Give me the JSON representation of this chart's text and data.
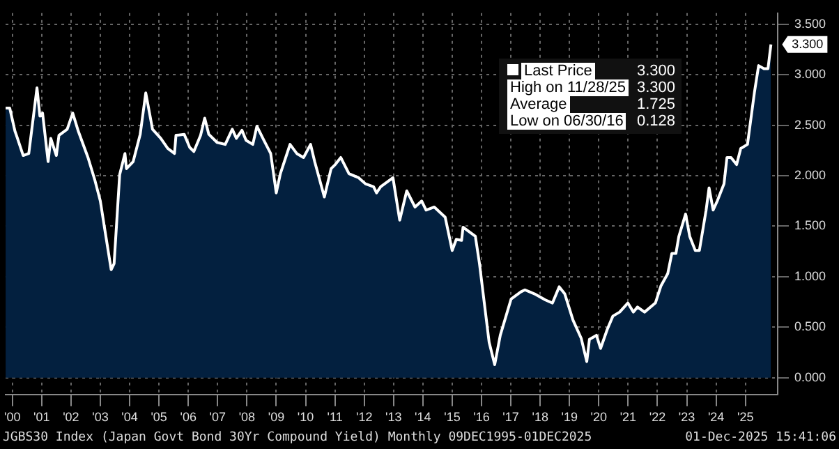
{
  "chart_data": {
    "type": "area",
    "x": [
      1999.77,
      1999.91,
      2000.09,
      2000.14,
      2000.37,
      2000.56,
      2000.84,
      2000.94,
      2001.03,
      2001.22,
      2001.31,
      2001.5,
      2001.59,
      2001.87,
      2002.06,
      2002.25,
      2002.58,
      2002.81,
      2003.0,
      2003.14,
      2003.37,
      2003.47,
      2003.66,
      2003.84,
      2003.89,
      2004.12,
      2004.36,
      2004.55,
      2004.78,
      2005.06,
      2005.3,
      2005.53,
      2005.58,
      2005.86,
      2006.05,
      2006.19,
      2006.42,
      2006.56,
      2006.7,
      2006.98,
      2007.26,
      2007.5,
      2007.64,
      2007.83,
      2007.97,
      2008.2,
      2008.34,
      2008.58,
      2008.81,
      2009.0,
      2009.14,
      2009.47,
      2009.7,
      2009.93,
      2010.17,
      2010.31,
      2010.64,
      2010.87,
      2011.01,
      2011.2,
      2011.48,
      2011.81,
      2012.04,
      2012.32,
      2012.42,
      2012.56,
      2012.98,
      2013.21,
      2013.45,
      2013.73,
      2013.96,
      2014.11,
      2014.39,
      2014.76,
      2015.0,
      2015.14,
      2015.32,
      2015.37,
      2015.79,
      2015.93,
      2016.26,
      2016.45,
      2016.64,
      2017.01,
      2017.34,
      2017.48,
      2017.81,
      2018.18,
      2018.42,
      2018.65,
      2018.84,
      2019.12,
      2019.4,
      2019.59,
      2019.68,
      2019.92,
      2020.06,
      2020.29,
      2020.48,
      2020.71,
      2020.99,
      2021.18,
      2021.32,
      2021.56,
      2021.93,
      2022.12,
      2022.35,
      2022.49,
      2022.63,
      2022.73,
      2022.96,
      2023.1,
      2023.29,
      2023.43,
      2023.66,
      2023.76,
      2023.9,
      2024.04,
      2024.27,
      2024.37,
      2024.51,
      2024.7,
      2024.84,
      2025.07,
      2025.31,
      2025.45,
      2025.63,
      2025.77,
      2025.87
    ],
    "series": [
      {
        "name": "Last Price",
        "color": "#03203f",
        "values": [
          2.67,
          2.67,
          2.44,
          2.4,
          2.2,
          2.22,
          2.87,
          2.59,
          2.62,
          2.14,
          2.37,
          2.2,
          2.4,
          2.46,
          2.62,
          2.44,
          2.18,
          1.96,
          1.75,
          1.49,
          1.07,
          1.13,
          2.01,
          2.22,
          2.07,
          2.14,
          2.41,
          2.82,
          2.46,
          2.37,
          2.27,
          2.22,
          2.4,
          2.41,
          2.28,
          2.24,
          2.4,
          2.57,
          2.41,
          2.33,
          2.31,
          2.46,
          2.37,
          2.45,
          2.35,
          2.31,
          2.49,
          2.35,
          2.22,
          1.83,
          2.02,
          2.31,
          2.22,
          2.18,
          2.31,
          2.14,
          1.79,
          2.07,
          2.11,
          2.18,
          2.02,
          1.98,
          1.92,
          1.89,
          1.83,
          1.89,
          1.98,
          1.56,
          1.85,
          1.69,
          1.75,
          1.66,
          1.69,
          1.59,
          1.26,
          1.37,
          1.36,
          1.49,
          1.4,
          1.13,
          0.35,
          0.13,
          0.42,
          0.78,
          0.85,
          0.87,
          0.83,
          0.77,
          0.74,
          0.9,
          0.83,
          0.57,
          0.39,
          0.16,
          0.38,
          0.42,
          0.29,
          0.48,
          0.61,
          0.65,
          0.74,
          0.65,
          0.7,
          0.65,
          0.74,
          0.91,
          1.03,
          1.23,
          1.23,
          1.4,
          1.62,
          1.4,
          1.26,
          1.26,
          1.66,
          1.88,
          1.66,
          1.75,
          1.92,
          2.18,
          2.18,
          2.11,
          2.27,
          2.31,
          2.83,
          3.09,
          3.06,
          3.06,
          3.3
        ]
      }
    ],
    "xlim": [
      1999.77,
      2026.1
    ],
    "xticks": [
      {
        "value": 2000,
        "label": "'00"
      },
      {
        "value": 2001,
        "label": "'01"
      },
      {
        "value": 2002,
        "label": "'02"
      },
      {
        "value": 2003,
        "label": "'03"
      },
      {
        "value": 2004,
        "label": "'04"
      },
      {
        "value": 2005,
        "label": "'05"
      },
      {
        "value": 2006,
        "label": "'06"
      },
      {
        "value": 2007,
        "label": "'07"
      },
      {
        "value": 2008,
        "label": "'08"
      },
      {
        "value": 2009,
        "label": "'09"
      },
      {
        "value": 2010,
        "label": "'10"
      },
      {
        "value": 2011,
        "label": "'11"
      },
      {
        "value": 2012,
        "label": "'12"
      },
      {
        "value": 2013,
        "label": "'13"
      },
      {
        "value": 2014,
        "label": "'14"
      },
      {
        "value": 2015,
        "label": "'15"
      },
      {
        "value": 2016,
        "label": "'16"
      },
      {
        "value": 2017,
        "label": "'17"
      },
      {
        "value": 2018,
        "label": "'18"
      },
      {
        "value": 2019,
        "label": "'19"
      },
      {
        "value": 2020,
        "label": "'20"
      },
      {
        "value": 2021,
        "label": "'21"
      },
      {
        "value": 2022,
        "label": "'22"
      },
      {
        "value": 2023,
        "label": "'23"
      },
      {
        "value": 2024,
        "label": "'24"
      },
      {
        "value": 2025,
        "label": "'25"
      }
    ],
    "ylim": [
      -0.17,
      3.61
    ],
    "yticks": [
      {
        "value": 0,
        "label": "0.000"
      },
      {
        "value": 0.5,
        "label": "0.500"
      },
      {
        "value": 1,
        "label": "1.000"
      },
      {
        "value": 1.5,
        "label": "1.500"
      },
      {
        "value": 2,
        "label": "2.000"
      },
      {
        "value": 2.5,
        "label": "2.500"
      },
      {
        "value": 3,
        "label": "3.000"
      },
      {
        "value": 3.5,
        "label": "3.500"
      }
    ],
    "grid": true,
    "legend": "top right",
    "annotations": [
      "3.300",
      "High on 11/28/25",
      "3.300",
      "Average",
      "1.725",
      "Low on 06/30/16",
      "0.128",
      {
        "text": "3.300",
        "x": 2025.87,
        "y": 3.3
      },
      "JGBS30 Index (Japan Govt Bond 30Yr Compound Yield) Monthly 09DEC1995-01DEC2025",
      "01-Dec-2025 15:41:06"
    ]
  }
}
